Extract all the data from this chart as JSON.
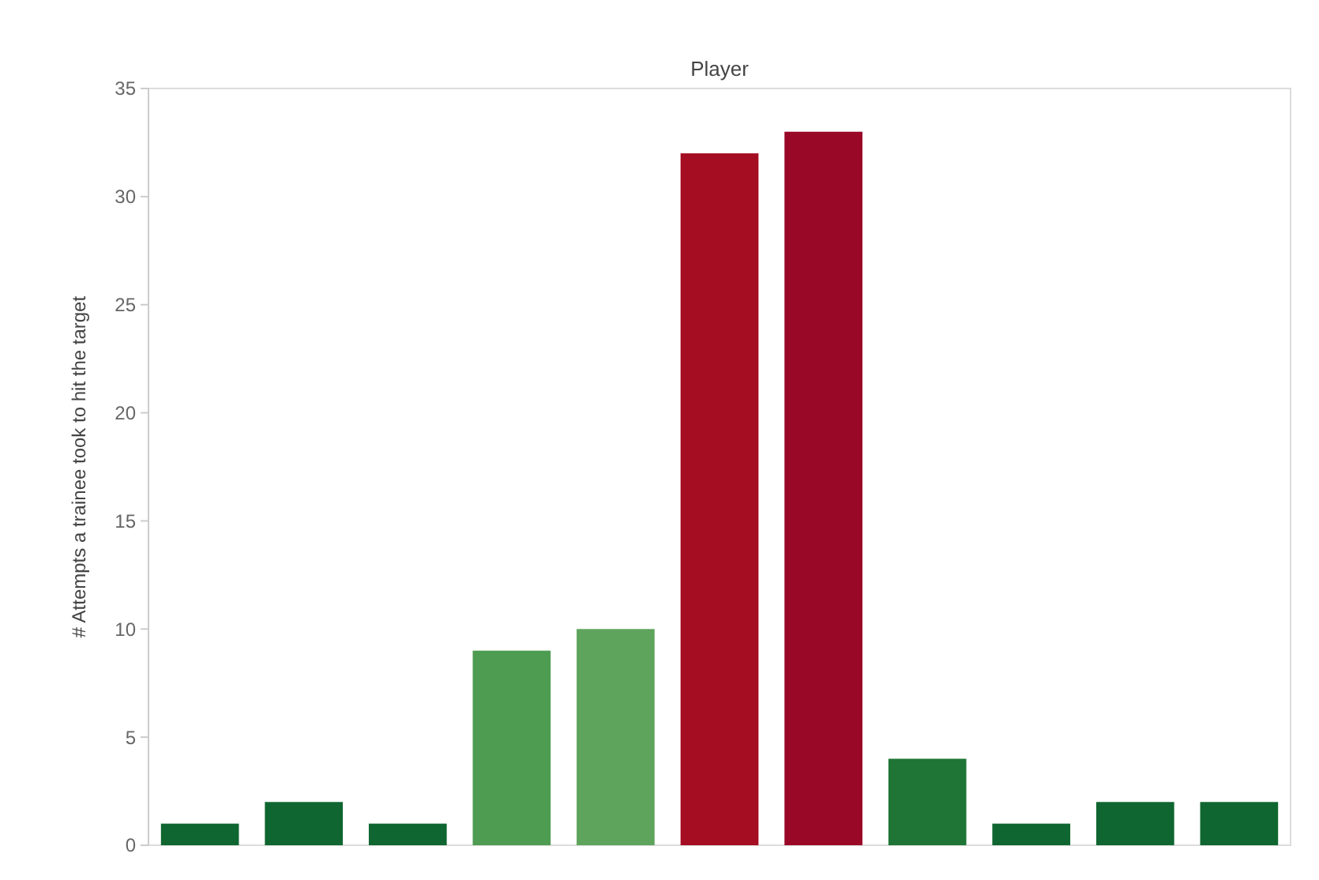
{
  "chart_data": {
    "type": "bar",
    "title": "Player",
    "ylabel": "# Attempts a trainee took to hit the target",
    "categories": [
      null,
      null,
      null,
      null,
      null,
      null,
      null,
      null,
      null,
      null,
      null
    ],
    "values": [
      1,
      2,
      1,
      9,
      10,
      32,
      33,
      4,
      1,
      2,
      2
    ],
    "colors": [
      "#0f6630",
      "#0f6630",
      "#0f6630",
      "#4e9c52",
      "#5fa45c",
      "#a50d22",
      "#9a0827",
      "#1e7535",
      "#0f6630",
      "#0f6630",
      "#0f6630"
    ],
    "ylim": [
      0,
      35
    ],
    "yticks": [
      0,
      5,
      10,
      15,
      20,
      25,
      30,
      35
    ],
    "grid": false
  }
}
